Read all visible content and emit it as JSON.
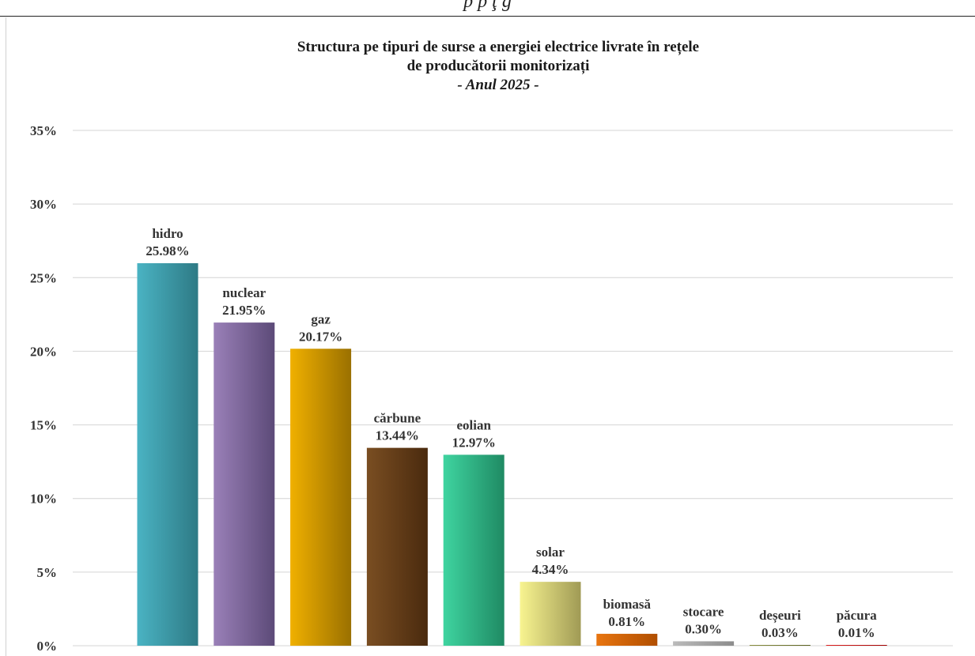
{
  "header": {
    "cut_text": "p                         p ţ             g"
  },
  "chart_data": {
    "type": "bar",
    "title": "Structura pe tipuri de surse a energiei electrice livrate în rețele",
    "title_line2": "de producătorii monitorizați",
    "subtitle": "- Anul 2025 -",
    "xlabel": "",
    "ylabel": "",
    "ylim": [
      0,
      35
    ],
    "y_ticks": [
      0,
      5,
      10,
      15,
      20,
      25,
      30,
      35
    ],
    "y_tick_labels": [
      "0%",
      "5%",
      "10%",
      "15%",
      "20%",
      "25%",
      "30%",
      "35%"
    ],
    "grid": true,
    "legend": "none",
    "categories": [
      "hidro",
      "nuclear",
      "gaz",
      "cărbune",
      "eolian",
      "solar",
      "biomasă",
      "stocare",
      "deșeuri",
      "păcura"
    ],
    "values": [
      25.98,
      21.95,
      20.17,
      13.44,
      12.97,
      4.34,
      0.81,
      0.3,
      0.03,
      0.01
    ],
    "value_labels": [
      "25.98%",
      "21.95%",
      "20.17%",
      "13.44%",
      "12.97%",
      "4.34%",
      "0.81%",
      "0.30%",
      "0.03%",
      "0.01%"
    ],
    "colors": [
      [
        "#4ab3c3",
        "#2e7a85"
      ],
      [
        "#9a80b8",
        "#5c4a78"
      ],
      [
        "#f0b000",
        "#9a7000"
      ],
      [
        "#7a4e22",
        "#4a2a0e"
      ],
      [
        "#3fd4a0",
        "#1f8a63"
      ],
      [
        "#f8f490",
        "#a09a55"
      ],
      [
        "#e87510",
        "#b04e00"
      ],
      [
        "#bbbbbb",
        "#8c8c8c"
      ],
      [
        "#8a9040",
        "#5a6020"
      ],
      [
        "#e02020",
        "#a00000"
      ]
    ]
  }
}
